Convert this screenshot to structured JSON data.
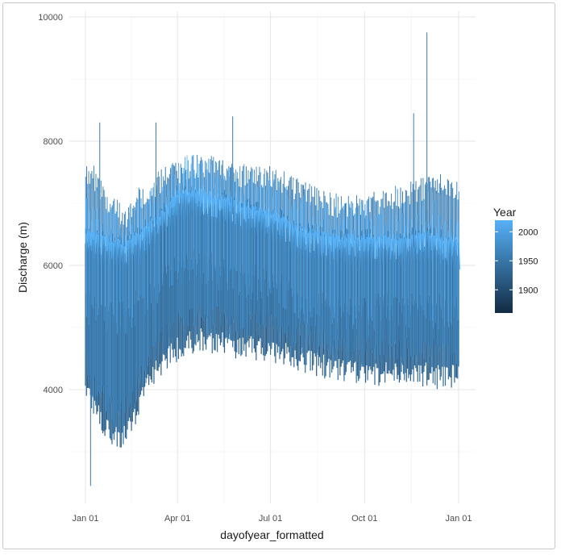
{
  "chart_data": {
    "type": "line",
    "title": "",
    "xlabel": "dayofyear_formatted",
    "ylabel": "Discharge (m)",
    "x_tick_labels": [
      "Jan 01",
      "Apr 01",
      "Jul 01",
      "Oct 01",
      "Jan 01"
    ],
    "x_tick_days": [
      1,
      91,
      182,
      274,
      366
    ],
    "xlim": [
      1,
      366
    ],
    "y_ticks": [
      4000,
      6000,
      8000,
      10000
    ],
    "ylim": [
      2200,
      10000
    ],
    "grid": true,
    "legend": {
      "title": "Year",
      "position": "right",
      "ticks": [
        1900,
        1950,
        2000
      ],
      "range": [
        1860,
        2020
      ],
      "color_low": "#132b43",
      "color_high": "#56b1f7"
    },
    "series_summary": {
      "description_days": [
        1,
        10,
        20,
        30,
        40,
        50,
        60,
        70,
        80,
        91,
        100,
        110,
        120,
        130,
        140,
        150,
        160,
        170,
        182,
        190,
        200,
        210,
        220,
        230,
        240,
        250,
        260,
        274,
        285,
        295,
        305,
        315,
        325,
        335,
        345,
        355,
        366
      ],
      "upper_envelope": [
        7700,
        7600,
        7300,
        7100,
        6900,
        7200,
        7400,
        7500,
        7600,
        7700,
        7750,
        7800,
        7800,
        7750,
        7700,
        7650,
        7650,
        7650,
        7600,
        7550,
        7500,
        7400,
        7350,
        7250,
        7200,
        7150,
        7150,
        7150,
        7200,
        7250,
        7300,
        7350,
        7400,
        7450,
        7500,
        7500,
        7400
      ],
      "central_band": [
        6350,
        6300,
        6250,
        6200,
        6150,
        6300,
        6400,
        6550,
        6750,
        6950,
        7000,
        7000,
        6950,
        6900,
        6850,
        6800,
        6750,
        6700,
        6650,
        6600,
        6500,
        6400,
        6350,
        6300,
        6250,
        6250,
        6250,
        6250,
        6250,
        6250,
        6250,
        6250,
        6300,
        6300,
        6250,
        6200,
        6200
      ],
      "lower_envelope": [
        3800,
        3500,
        3200,
        3000,
        3100,
        3400,
        3800,
        4100,
        4300,
        4450,
        4550,
        4600,
        4600,
        4550,
        4500,
        4500,
        4500,
        4450,
        4450,
        4400,
        4350,
        4300,
        4250,
        4200,
        4150,
        4100,
        4100,
        4050,
        4050,
        4050,
        4050,
        4050,
        4050,
        4050,
        4000,
        4000,
        4000
      ],
      "spikes": [
        {
          "day": 335,
          "value": 9750
        },
        {
          "day": 322,
          "value": 8450
        },
        {
          "day": 145,
          "value": 8400
        },
        {
          "day": 70,
          "value": 8300
        },
        {
          "day": 15,
          "value": 8300
        },
        {
          "day": 6,
          "value": 2450
        }
      ]
    }
  }
}
